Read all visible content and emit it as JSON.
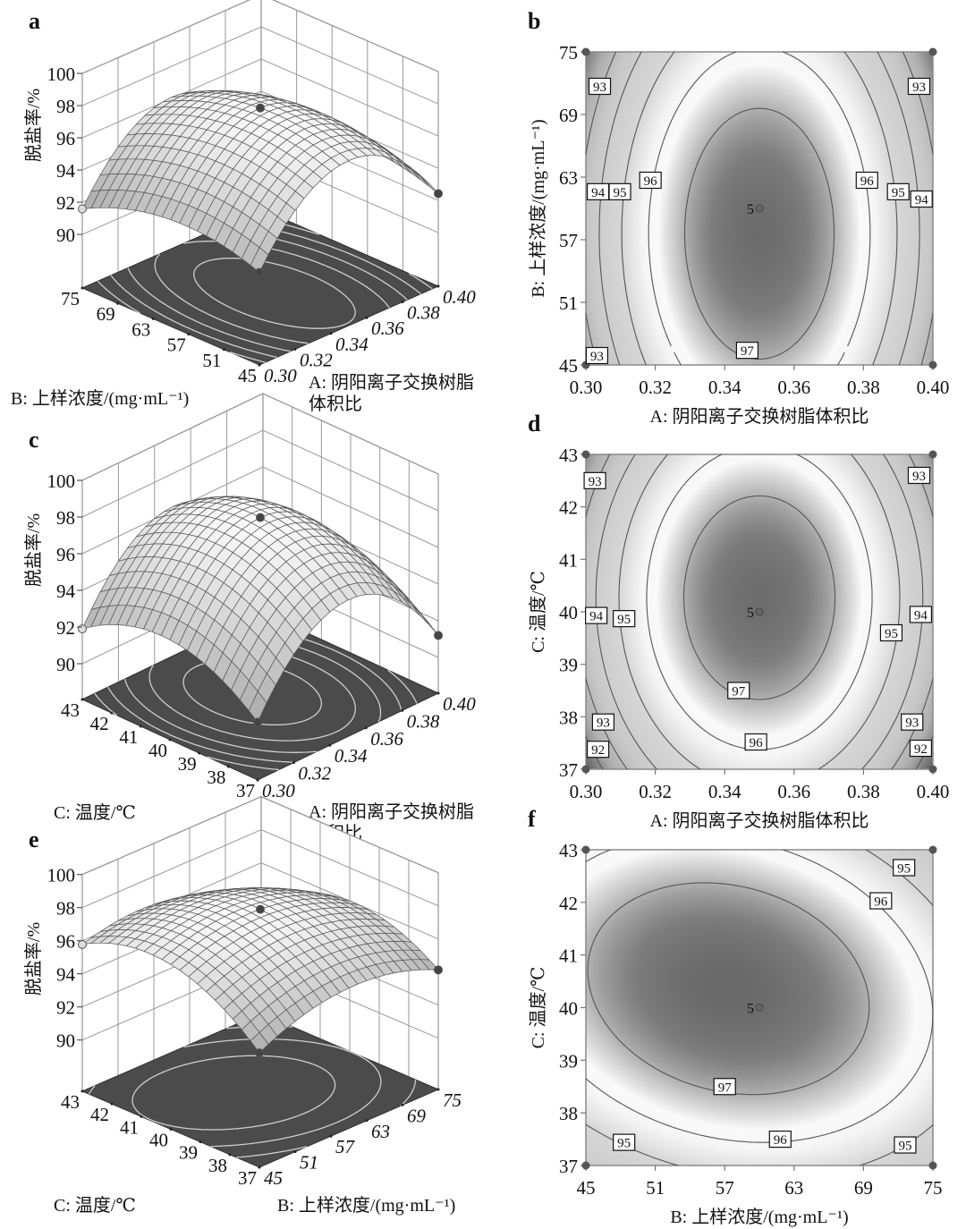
{
  "chart_data": [
    {
      "panel": "a",
      "type": "surface3d",
      "z_axis": {
        "label": "脱盐率/%",
        "ticks": [
          90,
          92,
          94,
          96,
          98,
          100
        ],
        "range": [
          90,
          100
        ]
      },
      "x_axis": {
        "label_lines": [
          "A: 阴阳离子交换树脂",
          "体积比"
        ],
        "ticks": [
          "0.30",
          "0.32",
          "0.34",
          "0.36",
          "0.38",
          "0.40"
        ],
        "range": [
          0.3,
          0.4
        ]
      },
      "y_axis": {
        "label_lines": [
          "B: 上样浓度/(mg·mL⁻¹)"
        ],
        "ticks": [
          "45",
          "51",
          "57",
          "63",
          "69",
          "75"
        ],
        "range": [
          45,
          75
        ]
      },
      "model": {
        "b0": 97.8,
        "bx": 0,
        "by": -0.42,
        "bxy": 0,
        "bxx": -4.5,
        "byy": -1.3
      },
      "floor_contour_levels": [
        93,
        94,
        95,
        96,
        97
      ]
    },
    {
      "panel": "b",
      "type": "contour",
      "x_axis": {
        "label": "A: 阴阳离子交换树脂体积比",
        "ticks": [
          "0.30",
          "0.32",
          "0.34",
          "0.36",
          "0.38",
          "0.40"
        ],
        "range": [
          0.3,
          0.4
        ]
      },
      "y_axis": {
        "label": "B: 上样浓度/(mg·mL⁻¹)",
        "ticks": [
          "45",
          "51",
          "57",
          "63",
          "69",
          "75"
        ],
        "range": [
          45,
          75
        ]
      },
      "model": {
        "b0": 97.8,
        "bx": 0,
        "by": -0.42,
        "bxy": 0,
        "bxx": -4.5,
        "byy": -1.3
      },
      "levels": [
        93,
        94,
        95,
        96,
        97
      ],
      "contour_labels": [
        {
          "text": "93",
          "x": 0.304,
          "y": 71.7
        },
        {
          "text": "93",
          "x": 0.396,
          "y": 71.7
        },
        {
          "text": "96",
          "x": 0.3186,
          "y": 62.7
        },
        {
          "text": "96",
          "x": 0.381,
          "y": 62.7
        },
        {
          "text": "94",
          "x": 0.3035,
          "y": 61.6
        },
        {
          "text": "95",
          "x": 0.3098,
          "y": 61.6
        },
        {
          "text": "95",
          "x": 0.39,
          "y": 61.6
        },
        {
          "text": "94",
          "x": 0.3967,
          "y": 60.9
        },
        {
          "text": "97",
          "x": 0.3465,
          "y": 46.4
        },
        {
          "text": "93",
          "x": 0.3032,
          "y": 45.9
        }
      ],
      "center_point": {
        "x": 0.35,
        "y": 60,
        "label": "5"
      },
      "design_points": [
        [
          0.3,
          45
        ],
        [
          0.3,
          75
        ],
        [
          0.4,
          45
        ],
        [
          0.4,
          75
        ]
      ]
    },
    {
      "panel": "c",
      "type": "surface3d",
      "z_axis": {
        "label": "脱盐率/%",
        "ticks": [
          90,
          92,
          94,
          96,
          98,
          100
        ],
        "range": [
          90,
          100
        ]
      },
      "x_axis": {
        "label_lines": [
          "A: 阴阳离子交换树脂",
          "体积比"
        ],
        "ticks": [
          "0.30",
          "0.32",
          "0.34",
          "0.36",
          "0.38",
          "0.40"
        ],
        "range": [
          0.3,
          0.4
        ]
      },
      "y_axis": {
        "label_lines": [
          "C: 温度/℃"
        ],
        "ticks": [
          "37",
          "38",
          "39",
          "40",
          "41",
          "42",
          "43"
        ],
        "range": [
          37,
          43
        ]
      },
      "model": {
        "b0": 97.8,
        "bx": 0,
        "by": 0.35,
        "bxy": 0,
        "bxx": -4.3,
        "byy": -1.95
      },
      "floor_contour_levels": [
        93,
        94,
        95,
        96,
        97
      ]
    },
    {
      "panel": "d",
      "type": "contour",
      "x_axis": {
        "label": "A: 阴阳离子交换树脂体积比",
        "ticks": [
          "0.30",
          "0.32",
          "0.34",
          "0.36",
          "0.38",
          "0.40"
        ],
        "range": [
          0.3,
          0.4
        ]
      },
      "y_axis": {
        "label": "C: 温度/℃",
        "ticks": [
          "37",
          "38",
          "39",
          "40",
          "41",
          "42",
          "43"
        ],
        "range": [
          37,
          43
        ]
      },
      "model": {
        "b0": 97.8,
        "bx": 0,
        "by": 0.35,
        "bxy": 0,
        "bxx": -4.3,
        "byy": -1.95
      },
      "levels": [
        92,
        93,
        94,
        95,
        96,
        97
      ],
      "contour_labels": [
        {
          "text": "93",
          "x": 0.3026,
          "y": 42.5
        },
        {
          "text": "93",
          "x": 0.396,
          "y": 42.6
        },
        {
          "text": "94",
          "x": 0.303,
          "y": 39.93
        },
        {
          "text": "95",
          "x": 0.311,
          "y": 39.87
        },
        {
          "text": "95",
          "x": 0.388,
          "y": 39.6
        },
        {
          "text": "94",
          "x": 0.3965,
          "y": 39.95
        },
        {
          "text": "97",
          "x": 0.344,
          "y": 38.5
        },
        {
          "text": "96",
          "x": 0.349,
          "y": 37.52
        },
        {
          "text": "93",
          "x": 0.305,
          "y": 37.9
        },
        {
          "text": "93",
          "x": 0.394,
          "y": 37.9
        },
        {
          "text": "92",
          "x": 0.3035,
          "y": 37.38
        },
        {
          "text": "92",
          "x": 0.3965,
          "y": 37.4
        }
      ],
      "center_point": {
        "x": 0.35,
        "y": 40,
        "label": "5"
      },
      "design_points": [
        [
          0.3,
          37
        ],
        [
          0.3,
          43
        ],
        [
          0.4,
          37
        ],
        [
          0.4,
          43
        ]
      ]
    },
    {
      "panel": "e",
      "type": "surface3d",
      "z_axis": {
        "label": "脱盐率/%",
        "ticks": [
          90,
          92,
          94,
          96,
          98,
          100
        ],
        "range": [
          90,
          100
        ]
      },
      "x_axis": {
        "label_lines": [
          "B: 上样浓度/(mg·mL⁻¹)"
        ],
        "ticks": [
          "45",
          "51",
          "57",
          "63",
          "69",
          "75"
        ],
        "range": [
          45,
          75
        ]
      },
      "y_axis": {
        "label_lines": [
          "C: 温度/℃"
        ],
        "ticks": [
          "37",
          "38",
          "39",
          "40",
          "41",
          "42",
          "43"
        ],
        "range": [
          37,
          43
        ]
      },
      "model": {
        "b0": 97.84,
        "bx": -0.433,
        "by": 0.391,
        "bxy": -0.59,
        "bxx": -1.414,
        "byy": -2.066
      },
      "floor_contour_levels": [
        95,
        96,
        97
      ]
    },
    {
      "panel": "f",
      "type": "contour",
      "x_axis": {
        "label": "B: 上样浓度/(mg·mL⁻¹)",
        "ticks": [
          "45",
          "51",
          "57",
          "63",
          "69",
          "75"
        ],
        "range": [
          45,
          75
        ]
      },
      "y_axis": {
        "label": "C: 温度/℃",
        "ticks": [
          "37",
          "38",
          "39",
          "40",
          "41",
          "42",
          "43"
        ],
        "range": [
          37,
          43
        ]
      },
      "model": {
        "b0": 97.84,
        "bx": -0.433,
        "by": 0.391,
        "bxy": -0.59,
        "bxx": -1.414,
        "byy": -2.066
      },
      "levels": [
        95,
        96,
        97
      ],
      "contour_labels": [
        {
          "text": "95",
          "x": 72.5,
          "y": 42.66
        },
        {
          "text": "96",
          "x": 70.5,
          "y": 42.03
        },
        {
          "text": "97",
          "x": 57.0,
          "y": 38.5
        },
        {
          "text": "96",
          "x": 61.8,
          "y": 37.5
        },
        {
          "text": "95",
          "x": 48.3,
          "y": 37.44
        },
        {
          "text": "95",
          "x": 72.6,
          "y": 37.39
        }
      ],
      "center_point": {
        "x": 60,
        "y": 40,
        "label": "5"
      },
      "design_points": [
        [
          45,
          37
        ],
        [
          45,
          43
        ],
        [
          75,
          37
        ],
        [
          75,
          43
        ]
      ]
    }
  ]
}
